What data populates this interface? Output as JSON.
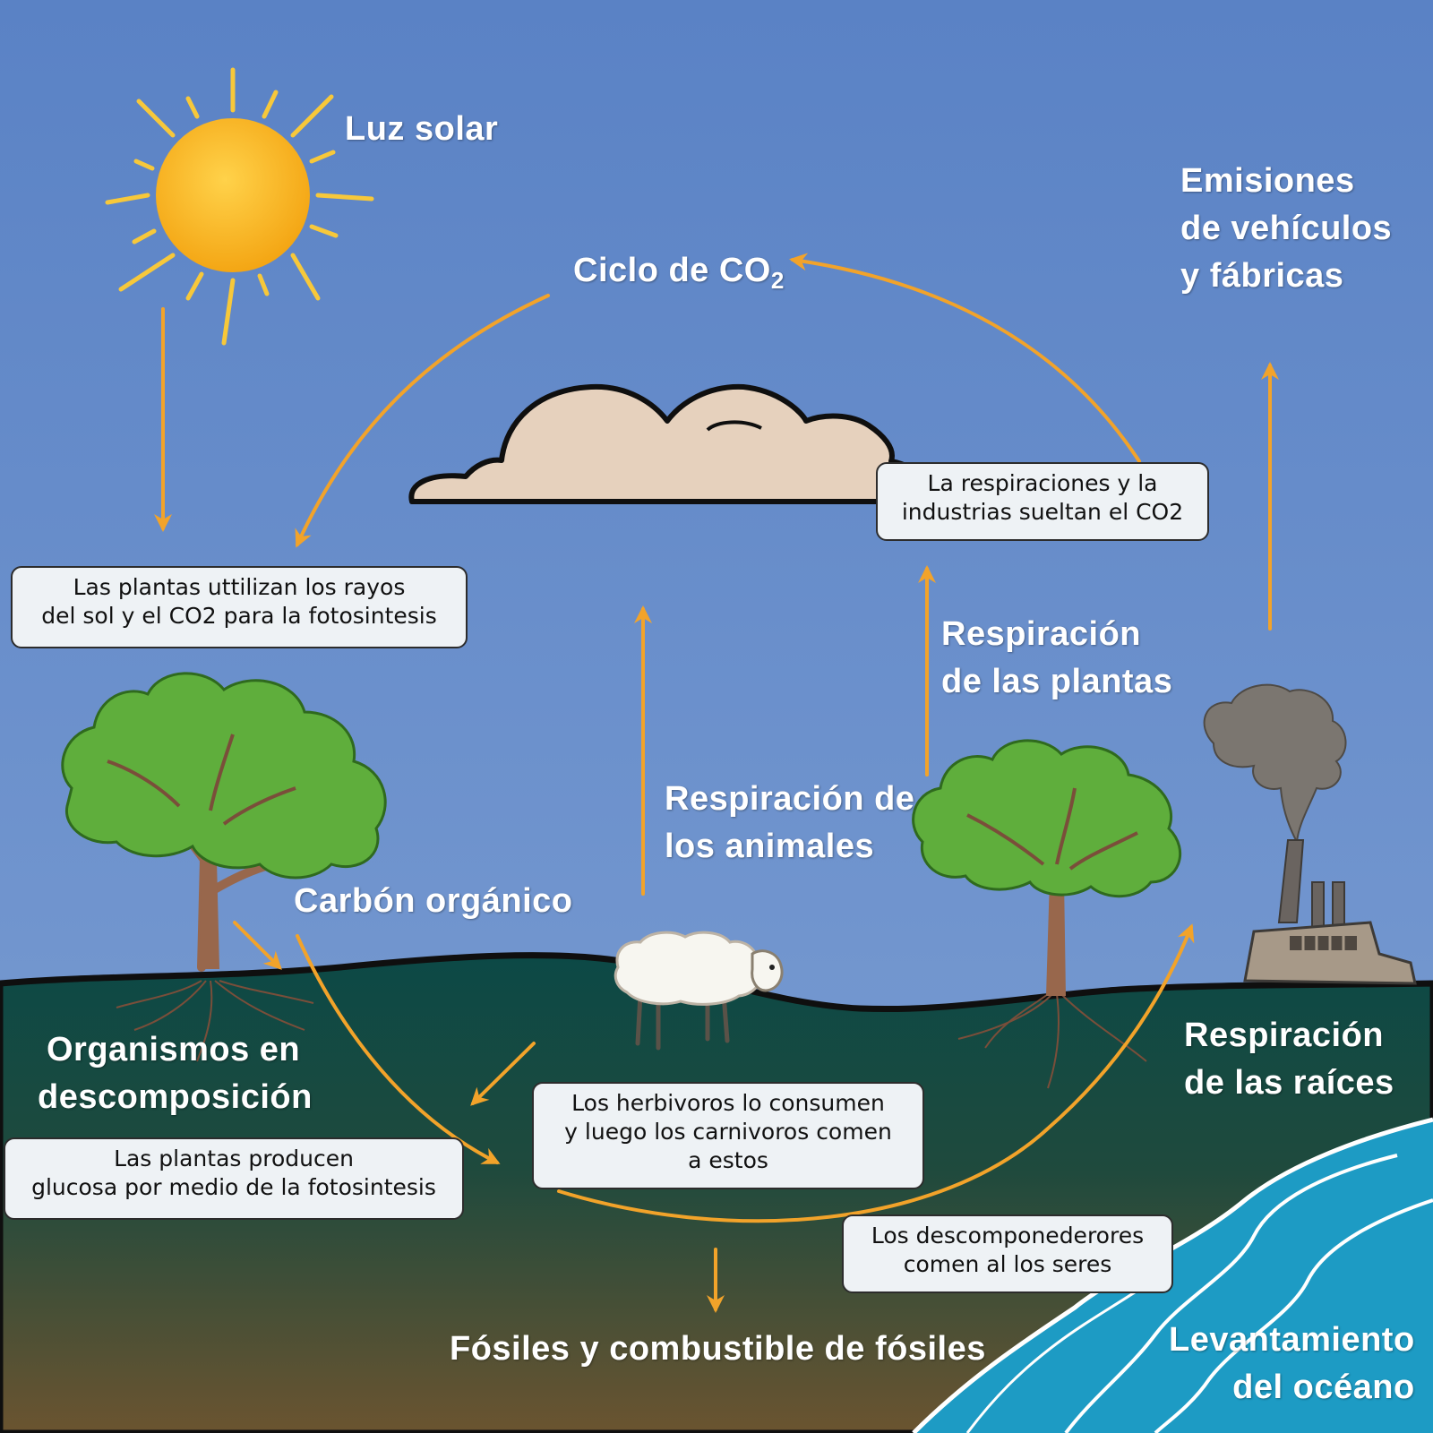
{
  "labels": {
    "sunlight": "Luz solar",
    "co2_cycle_prefix": "Ciclo de CO",
    "co2_cycle_subscript": "2",
    "emissions": [
      "Emisiones",
      "de vehículos",
      "y fábricas"
    ],
    "plant_respiration": [
      "Respiración",
      "de las plantas"
    ],
    "animal_respiration": [
      "Respiración de",
      "los animales"
    ],
    "organic_carbon": "Carbón orgánico",
    "decomposing_organisms": [
      "Organismos en",
      "descomposición"
    ],
    "root_respiration": [
      "Respiración",
      "de las raíces"
    ],
    "fossils": "Fósiles y combustible de fósiles",
    "ocean_uplift": [
      "Levantamiento",
      "del océano"
    ]
  },
  "boxes": {
    "photosynthesis_use": [
      "Las plantas uttilizan los rayos",
      "del sol y el CO2 para la fotosintesis"
    ],
    "respiration_release": [
      "La respiraciones y la",
      "industrias sueltan el CO2"
    ],
    "glucose_production": [
      "Las plantas producen",
      "glucosa por medio de la fotosintesis"
    ],
    "herbivores": [
      "Los herbivoros lo consumen",
      "y luego los carnivoros comen",
      "a estos"
    ],
    "decomposers": [
      "Los descomponederores",
      "comen al los seres"
    ]
  },
  "colors": {
    "sky": "#5b83c6",
    "ground_top": "#0d4a45",
    "ground_bottom": "#6a5430",
    "arrow": "#f2a32a",
    "sun": "#f7b21c",
    "cloud": "#e6d1bd",
    "foliage": "#5fae3c",
    "trunk": "#98674c",
    "ocean": "#1d9bc4",
    "smoke": "#7b7670",
    "box_fill": "#eef2f5"
  },
  "icons": [
    "sun-icon",
    "cloud-icon",
    "tree-icon",
    "sheep-icon",
    "factory-icon",
    "ocean-icon"
  ]
}
